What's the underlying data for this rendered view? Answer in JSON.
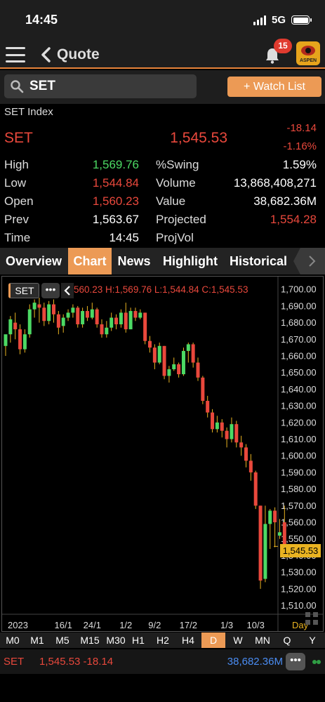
{
  "status": {
    "time": "14:45",
    "network": "5G"
  },
  "nav": {
    "title": "Quote",
    "badge": "15",
    "logo_text": "ASPEN"
  },
  "search": {
    "value": "SET",
    "watch_list_label": "+ Watch List"
  },
  "quote": {
    "index_name": "SET Index",
    "symbol": "SET",
    "last": "1,545.53",
    "change": "-18.14",
    "change_pct": "-1.16%",
    "left_stats": [
      {
        "label": "High",
        "value": "1,569.76",
        "color": "#4cd964"
      },
      {
        "label": "Low",
        "value": "1,544.84",
        "color": "#e9483c"
      },
      {
        "label": "Open",
        "value": "1,560.23",
        "color": "#e9483c"
      },
      {
        "label": "Prev",
        "value": "1,563.67",
        "color": "#ffffff"
      },
      {
        "label": "Time",
        "value": "14:45",
        "color": "#ffffff"
      }
    ],
    "right_stats": [
      {
        "label": "%Swing",
        "value": "1.59%",
        "color": "#ffffff"
      },
      {
        "label": "Volume",
        "value": "13,868,408,271",
        "color": "#ffffff"
      },
      {
        "label": "Value",
        "value": "38,682.36M",
        "color": "#ffffff"
      },
      {
        "label": "Projected",
        "value": "1,554.28",
        "color": "#e9483c"
      },
      {
        "label": "ProjVol",
        "value": "",
        "color": "#ffffff"
      }
    ]
  },
  "tabs": [
    {
      "label": "Overview",
      "active": false
    },
    {
      "label": "Chart",
      "active": true
    },
    {
      "label": "News",
      "active": false
    },
    {
      "label": "Highlight",
      "active": false
    },
    {
      "label": "Historical",
      "active": false
    }
  ],
  "chart_toolbar": {
    "symbol": "SET",
    "more": "•••",
    "ohlc": "560.23 H:1,569.76 L:1,544.84 C:1,545.53",
    "last_tag": "1,545.53",
    "period_label": "Day"
  },
  "timeframes": [
    {
      "label": "M0",
      "active": false
    },
    {
      "label": "M1",
      "active": false
    },
    {
      "label": "M5",
      "active": false
    },
    {
      "label": "M15",
      "active": false
    },
    {
      "label": "M30",
      "active": false
    },
    {
      "label": "H1",
      "active": false
    },
    {
      "label": "H2",
      "active": false
    },
    {
      "label": "H4",
      "active": false
    },
    {
      "label": "D",
      "active": true
    },
    {
      "label": "W",
      "active": false
    },
    {
      "label": "MN",
      "active": false
    },
    {
      "label": "Q",
      "active": false
    },
    {
      "label": "Y",
      "active": false
    }
  ],
  "bottom": {
    "symbol": "SET",
    "last_change": "1,545.53 -18.14",
    "value": "38,682.36M",
    "more": "•••"
  },
  "colors": {
    "up": "#4cd964",
    "down": "#e9483c",
    "accent": "#ec9a55",
    "last_price": "#e9b321"
  },
  "chart_data": {
    "type": "candlestick",
    "ylim": [
      1506,
      1706
    ],
    "y_ticks": [
      1510,
      1520,
      1530,
      1540,
      1550,
      1560,
      1570,
      1580,
      1590,
      1600,
      1610,
      1620,
      1630,
      1640,
      1650,
      1660,
      1670,
      1680,
      1690,
      1700
    ],
    "x_ticks": [
      {
        "label": "2023",
        "index": 3
      },
      {
        "label": "16/1",
        "index": 12
      },
      {
        "label": "24/1",
        "index": 18
      },
      {
        "label": "1/2",
        "index": 25
      },
      {
        "label": "9/2",
        "index": 31
      },
      {
        "label": "17/2",
        "index": 38
      },
      {
        "label": "1/3",
        "index": 46
      },
      {
        "label": "10/3",
        "index": 52
      }
    ],
    "candles": [
      [
        1666,
        1673,
        1672,
        1660
      ],
      [
        1673,
        1682,
        1684,
        1668
      ],
      [
        1680,
        1676,
        1686,
        1670
      ],
      [
        1676,
        1664,
        1679,
        1661
      ],
      [
        1664,
        1673,
        1676,
        1662
      ],
      [
        1673,
        1688,
        1691,
        1671
      ],
      [
        1688,
        1692,
        1694,
        1683
      ],
      [
        1691,
        1689,
        1695,
        1680
      ],
      [
        1689,
        1681,
        1692,
        1678
      ],
      [
        1681,
        1691,
        1693,
        1679
      ],
      [
        1691,
        1685,
        1694,
        1680
      ],
      [
        1685,
        1677,
        1687,
        1673
      ],
      [
        1678,
        1683,
        1685,
        1674
      ],
      [
        1683,
        1686,
        1688,
        1681
      ],
      [
        1686,
        1689,
        1691,
        1683
      ],
      [
        1689,
        1679,
        1690,
        1677
      ],
      [
        1679,
        1687,
        1689,
        1677
      ],
      [
        1687,
        1683,
        1690,
        1681
      ],
      [
        1683,
        1688,
        1692,
        1682
      ],
      [
        1688,
        1679,
        1689,
        1677
      ],
      [
        1679,
        1673,
        1682,
        1671
      ],
      [
        1673,
        1677,
        1681,
        1671
      ],
      [
        1677,
        1683,
        1686,
        1675
      ],
      [
        1683,
        1679,
        1685,
        1676
      ],
      [
        1679,
        1686,
        1688,
        1677
      ],
      [
        1686,
        1676,
        1692,
        1674
      ],
      [
        1676,
        1687,
        1689,
        1676
      ],
      [
        1687,
        1683,
        1689,
        1681
      ],
      [
        1683,
        1686,
        1688,
        1682
      ],
      [
        1686,
        1669,
        1686,
        1667
      ],
      [
        1669,
        1665,
        1672,
        1662
      ],
      [
        1665,
        1656,
        1667,
        1652
      ],
      [
        1656,
        1666,
        1668,
        1655
      ],
      [
        1666,
        1648,
        1666,
        1646
      ],
      [
        1648,
        1652,
        1654,
        1644
      ],
      [
        1652,
        1655,
        1659,
        1651
      ],
      [
        1655,
        1649,
        1656,
        1647
      ],
      [
        1649,
        1663,
        1665,
        1648
      ],
      [
        1663,
        1667,
        1668,
        1656
      ],
      [
        1667,
        1656,
        1668,
        1653
      ],
      [
        1656,
        1647,
        1659,
        1645
      ],
      [
        1647,
        1633,
        1648,
        1631
      ],
      [
        1633,
        1626,
        1636,
        1623
      ],
      [
        1626,
        1616,
        1628,
        1614
      ],
      [
        1616,
        1620,
        1624,
        1614
      ],
      [
        1620,
        1615,
        1622,
        1611
      ],
      [
        1615,
        1610,
        1617,
        1605
      ],
      [
        1610,
        1619,
        1623,
        1608
      ],
      [
        1619,
        1608,
        1621,
        1605
      ],
      [
        1608,
        1605,
        1612,
        1600
      ],
      [
        1605,
        1597,
        1607,
        1593
      ],
      [
        1597,
        1590,
        1601,
        1585
      ],
      [
        1590,
        1570,
        1591,
        1568
      ],
      [
        1570,
        1525,
        1570,
        1520
      ],
      [
        1526,
        1559,
        1570,
        1524
      ],
      [
        1559,
        1567,
        1568,
        1544
      ],
      [
        1567,
        1560,
        1569,
        1545
      ],
      [
        1552,
        1554,
        1562,
        1550
      ],
      [
        1560,
        1545,
        1570,
        1545
      ]
    ]
  }
}
